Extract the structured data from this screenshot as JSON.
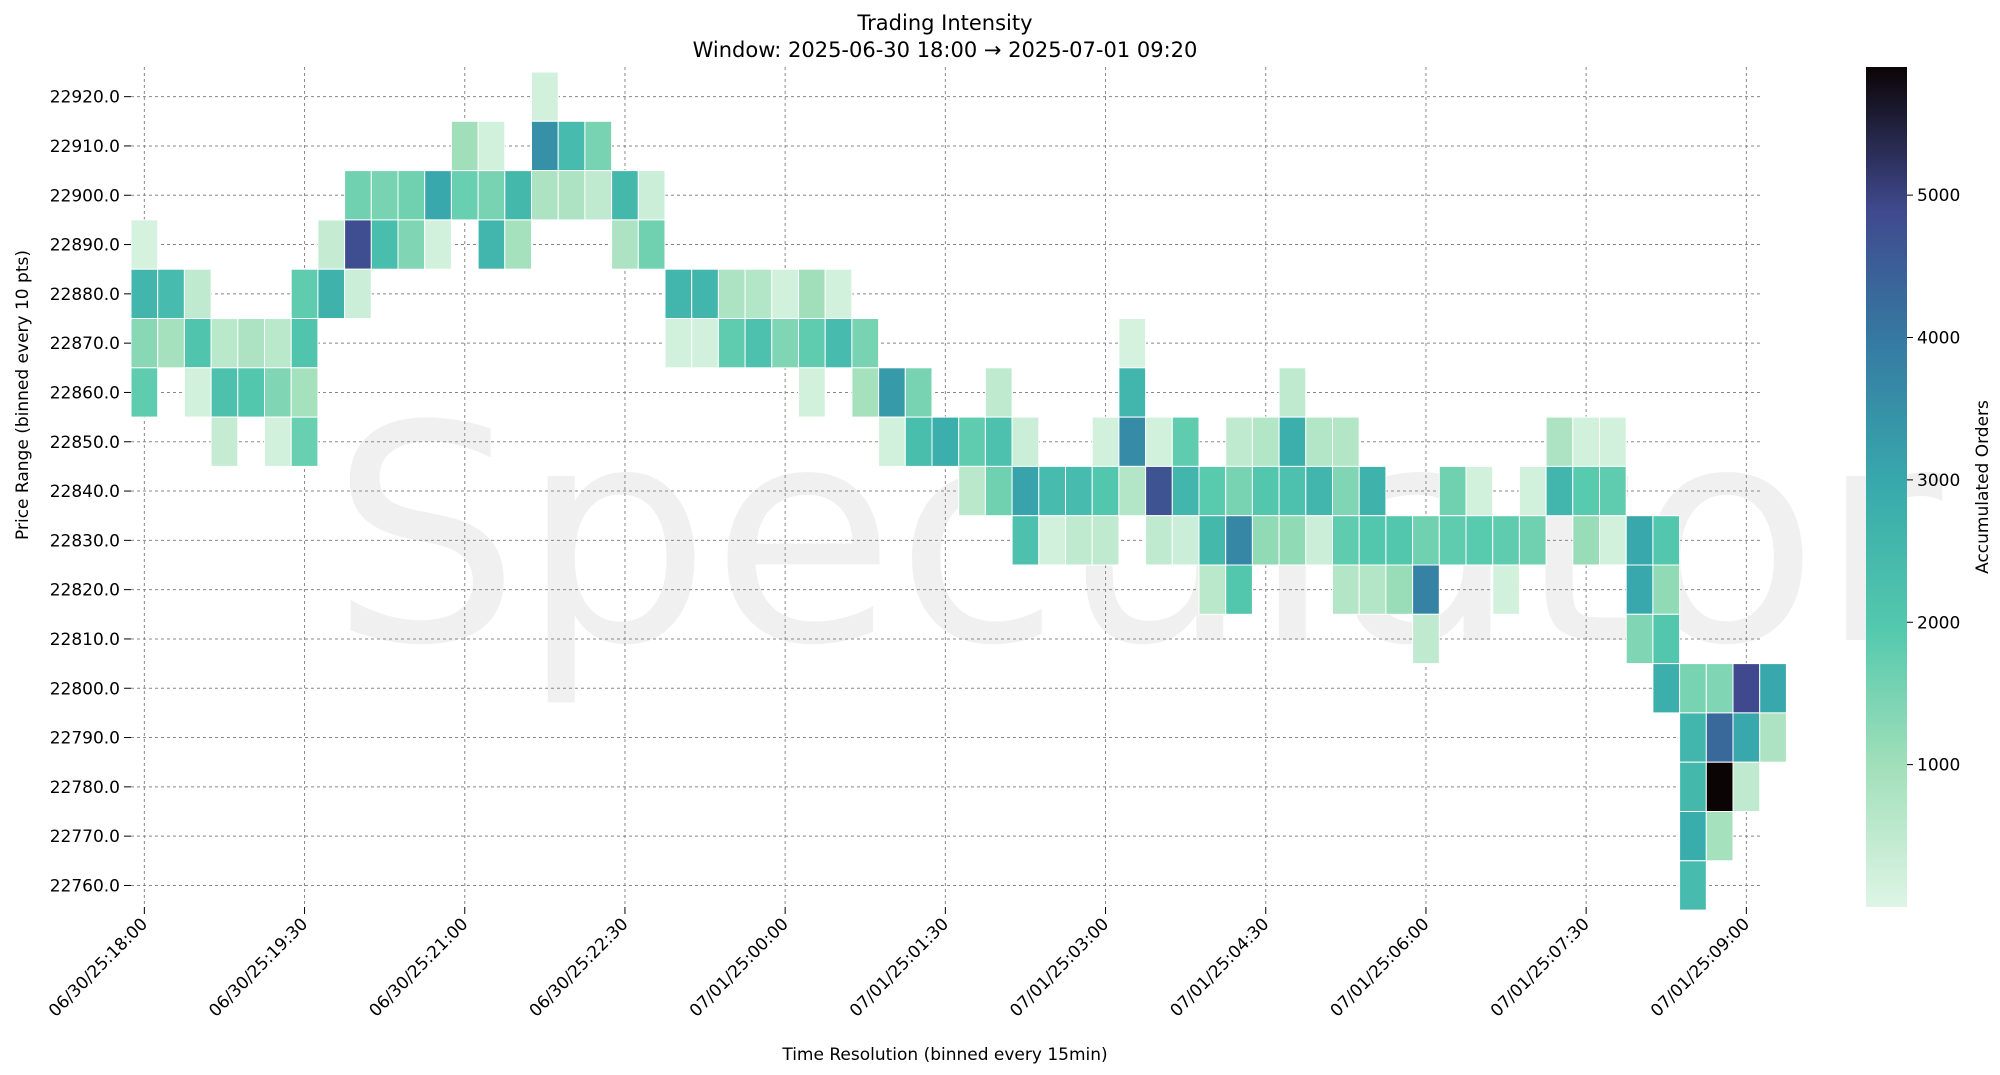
{
  "chart_data": {
    "type": "heatmap",
    "title": "Trading Intensity",
    "subtitle": "Window: 2025-06-30 18:00 → 2025-07-01 09:20",
    "xlabel": "Time Resolution (binned every 15min)",
    "ylabel": "Price Range (binned every 10 pts)",
    "watermark": "Speculator",
    "colorbar": {
      "label": "Accumulated Orders",
      "vmin": 0,
      "vmax": 5900,
      "ticks": [
        1000,
        2000,
        3000,
        4000,
        5000
      ]
    },
    "time_bin_minutes": 15,
    "x_start": "06/30/25:18:00",
    "x_tick_labels": [
      "06/30/25:18:00",
      "06/30/25:19:30",
      "06/30/25:21:00",
      "06/30/25:22:30",
      "07/01/25:00:00",
      "07/01/25:01:30",
      "07/01/25:03:00",
      "07/01/25:04:30",
      "07/01/25:06:00",
      "07/01/25:07:30",
      "07/01/25:09:00"
    ],
    "y_bins": [
      22760.0,
      22770.0,
      22780.0,
      22790.0,
      22800.0,
      22810.0,
      22820.0,
      22830.0,
      22840.0,
      22850.0,
      22860.0,
      22870.0,
      22880.0,
      22890.0,
      22900.0,
      22910.0,
      22920.0
    ],
    "y_tick_labels": [
      "22760.0",
      "22770.0",
      "22780.0",
      "22790.0",
      "22800.0",
      "22810.0",
      "22820.0",
      "22830.0",
      "22840.0",
      "22850.0",
      "22860.0",
      "22870.0",
      "22880.0",
      "22890.0",
      "22900.0",
      "22910.0",
      "22920.0"
    ],
    "cells": [
      [
        "06/30/25:18:00",
        22890,
        150
      ],
      [
        "06/30/25:18:00",
        22880,
        2600
      ],
      [
        "06/30/25:18:00",
        22870,
        1300
      ],
      [
        "06/30/25:18:00",
        22860,
        1800
      ],
      [
        "06/30/25:18:15",
        22880,
        2400
      ],
      [
        "06/30/25:18:15",
        22870,
        900
      ],
      [
        "06/30/25:18:30",
        22880,
        500
      ],
      [
        "06/30/25:18:30",
        22870,
        2100
      ],
      [
        "06/30/25:18:30",
        22860,
        200
      ],
      [
        "06/30/25:18:45",
        22870,
        600
      ],
      [
        "06/30/25:18:45",
        22860,
        2200
      ],
      [
        "06/30/25:18:45",
        22850,
        400
      ],
      [
        "06/30/25:19:00",
        22870,
        800
      ],
      [
        "06/30/25:19:00",
        22860,
        2000
      ],
      [
        "06/30/25:19:15",
        22870,
        600
      ],
      [
        "06/30/25:19:15",
        22860,
        1400
      ],
      [
        "06/30/25:19:15",
        22850,
        200
      ],
      [
        "06/30/25:19:30",
        22880,
        1800
      ],
      [
        "06/30/25:19:30",
        22870,
        2100
      ],
      [
        "06/30/25:19:30",
        22860,
        900
      ],
      [
        "06/30/25:19:30",
        22850,
        1700
      ],
      [
        "06/30/25:19:45",
        22890,
        400
      ],
      [
        "06/30/25:19:45",
        22880,
        2700
      ],
      [
        "06/30/25:20:00",
        22900,
        1600
      ],
      [
        "06/30/25:20:00",
        22890,
        4800
      ],
      [
        "06/30/25:20:00",
        22880,
        300
      ],
      [
        "06/30/25:20:15",
        22900,
        1500
      ],
      [
        "06/30/25:20:15",
        22890,
        2300
      ],
      [
        "06/30/25:20:30",
        22900,
        1600
      ],
      [
        "06/30/25:20:30",
        22890,
        1400
      ],
      [
        "06/30/25:20:45",
        22900,
        3000
      ],
      [
        "06/30/25:20:45",
        22890,
        200
      ],
      [
        "06/30/25:21:00",
        22910,
        1000
      ],
      [
        "06/30/25:21:00",
        22900,
        1700
      ],
      [
        "06/30/25:21:15",
        22910,
        200
      ],
      [
        "06/30/25:21:15",
        22900,
        1500
      ],
      [
        "06/30/25:21:15",
        22890,
        2600
      ],
      [
        "06/30/25:21:30",
        22900,
        2500
      ],
      [
        "06/30/25:21:30",
        22890,
        900
      ],
      [
        "06/30/25:21:45",
        22920,
        200
      ],
      [
        "06/30/25:21:45",
        22910,
        3500
      ],
      [
        "06/30/25:21:45",
        22900,
        800
      ],
      [
        "06/30/25:22:00",
        22910,
        2400
      ],
      [
        "06/30/25:22:00",
        22900,
        800
      ],
      [
        "06/30/25:22:15",
        22910,
        1500
      ],
      [
        "06/30/25:22:15",
        22900,
        500
      ],
      [
        "06/30/25:22:30",
        22900,
        2500
      ],
      [
        "06/30/25:22:30",
        22890,
        800
      ],
      [
        "06/30/25:22:45",
        22900,
        300
      ],
      [
        "06/30/25:22:45",
        22890,
        1600
      ],
      [
        "06/30/25:23:00",
        22880,
        2600
      ],
      [
        "06/30/25:23:00",
        22870,
        200
      ],
      [
        "06/30/25:23:15",
        22880,
        2600
      ],
      [
        "06/30/25:23:15",
        22870,
        200
      ],
      [
        "06/30/25:23:30",
        22880,
        800
      ],
      [
        "06/30/25:23:30",
        22870,
        1800
      ],
      [
        "06/30/25:23:45",
        22880,
        700
      ],
      [
        "06/30/25:23:45",
        22870,
        2200
      ],
      [
        "07/01/25:00:00",
        22880,
        200
      ],
      [
        "07/01/25:00:00",
        22870,
        1400
      ],
      [
        "07/01/25:00:15",
        22880,
        1000
      ],
      [
        "07/01/25:00:15",
        22870,
        1800
      ],
      [
        "07/01/25:00:15",
        22860,
        200
      ],
      [
        "07/01/25:00:30",
        22880,
        200
      ],
      [
        "07/01/25:00:30",
        22870,
        2400
      ],
      [
        "07/01/25:00:45",
        22870,
        1500
      ],
      [
        "07/01/25:00:45",
        22860,
        900
      ],
      [
        "07/01/25:01:00",
        22860,
        3300
      ],
      [
        "07/01/25:01:00",
        22850,
        200
      ],
      [
        "07/01/25:01:15",
        22860,
        1500
      ],
      [
        "07/01/25:01:15",
        22850,
        2300
      ],
      [
        "07/01/25:01:30",
        22850,
        2800
      ],
      [
        "07/01/25:01:45",
        22850,
        1800
      ],
      [
        "07/01/25:01:45",
        22840,
        600
      ],
      [
        "07/01/25:02:00",
        22860,
        500
      ],
      [
        "07/01/25:02:00",
        22850,
        2200
      ],
      [
        "07/01/25:02:00",
        22840,
        1600
      ],
      [
        "07/01/25:02:15",
        22850,
        300
      ],
      [
        "07/01/25:02:15",
        22840,
        3100
      ],
      [
        "07/01/25:02:15",
        22830,
        2200
      ],
      [
        "07/01/25:02:30",
        22840,
        2400
      ],
      [
        "07/01/25:02:30",
        22830,
        200
      ],
      [
        "07/01/25:02:45",
        22840,
        2400
      ],
      [
        "07/01/25:02:45",
        22830,
        500
      ],
      [
        "07/01/25:03:00",
        22850,
        200
      ],
      [
        "07/01/25:03:00",
        22840,
        2000
      ],
      [
        "07/01/25:03:00",
        22830,
        500
      ],
      [
        "07/01/25:03:15",
        22870,
        150
      ],
      [
        "07/01/25:03:15",
        22860,
        2600
      ],
      [
        "07/01/25:03:15",
        22850,
        3600
      ],
      [
        "07/01/25:03:15",
        22840,
        700
      ],
      [
        "07/01/25:03:30",
        22850,
        200
      ],
      [
        "07/01/25:03:30",
        22840,
        4700
      ],
      [
        "07/01/25:03:30",
        22830,
        500
      ],
      [
        "07/01/25:03:45",
        22850,
        1800
      ],
      [
        "07/01/25:03:45",
        22840,
        2600
      ],
      [
        "07/01/25:03:45",
        22830,
        300
      ],
      [
        "07/01/25:04:00",
        22840,
        1900
      ],
      [
        "07/01/25:04:00",
        22830,
        2500
      ],
      [
        "07/01/25:04:00",
        22820,
        600
      ],
      [
        "07/01/25:04:15",
        22850,
        500
      ],
      [
        "07/01/25:04:15",
        22840,
        1500
      ],
      [
        "07/01/25:04:15",
        22830,
        3700
      ],
      [
        "07/01/25:04:15",
        22820,
        2000
      ],
      [
        "07/01/25:04:30",
        22850,
        700
      ],
      [
        "07/01/25:04:30",
        22840,
        2000
      ],
      [
        "07/01/25:04:30",
        22830,
        1200
      ],
      [
        "07/01/25:04:45",
        22860,
        500
      ],
      [
        "07/01/25:04:45",
        22850,
        2800
      ],
      [
        "07/01/25:04:45",
        22840,
        2200
      ],
      [
        "07/01/25:04:45",
        22830,
        1200
      ],
      [
        "07/01/25:05:00",
        22850,
        700
      ],
      [
        "07/01/25:05:00",
        22840,
        2600
      ],
      [
        "07/01/25:05:00",
        22830,
        300
      ],
      [
        "07/01/25:05:15",
        22850,
        700
      ],
      [
        "07/01/25:05:15",
        22840,
        1400
      ],
      [
        "07/01/25:05:15",
        22830,
        1800
      ],
      [
        "07/01/25:05:15",
        22820,
        700
      ],
      [
        "07/01/25:05:30",
        22840,
        2700
      ],
      [
        "07/01/25:05:30",
        22830,
        2000
      ],
      [
        "07/01/25:05:30",
        22820,
        700
      ],
      [
        "07/01/25:05:45",
        22830,
        2000
      ],
      [
        "07/01/25:05:45",
        22820,
        1100
      ],
      [
        "07/01/25:06:00",
        22830,
        1600
      ],
      [
        "07/01/25:06:00",
        22820,
        3800
      ],
      [
        "07/01/25:06:00",
        22810,
        500
      ],
      [
        "07/01/25:06:15",
        22840,
        1600
      ],
      [
        "07/01/25:06:15",
        22830,
        1800
      ],
      [
        "07/01/25:06:30",
        22840,
        200
      ],
      [
        "07/01/25:06:30",
        22830,
        1900
      ],
      [
        "07/01/25:06:45",
        22830,
        1800
      ],
      [
        "07/01/25:06:45",
        22820,
        200
      ],
      [
        "07/01/25:07:00",
        22840,
        200
      ],
      [
        "07/01/25:07:00",
        22830,
        1600
      ],
      [
        "07/01/25:07:15",
        22850,
        800
      ],
      [
        "07/01/25:07:15",
        22840,
        2600
      ],
      [
        "07/01/25:07:30",
        22850,
        200
      ],
      [
        "07/01/25:07:30",
        22840,
        1900
      ],
      [
        "07/01/25:07:30",
        22830,
        1100
      ],
      [
        "07/01/25:07:45",
        22850,
        200
      ],
      [
        "07/01/25:07:45",
        22840,
        1800
      ],
      [
        "07/01/25:07:45",
        22830,
        200
      ],
      [
        "07/01/25:08:00",
        22830,
        3000
      ],
      [
        "07/01/25:08:00",
        22820,
        3000
      ],
      [
        "07/01/25:08:00",
        22810,
        1400
      ],
      [
        "07/01/25:08:15",
        22830,
        2000
      ],
      [
        "07/01/25:08:15",
        22820,
        1200
      ],
      [
        "07/01/25:08:15",
        22810,
        2000
      ],
      [
        "07/01/25:08:15",
        22800,
        2800
      ],
      [
        "07/01/25:08:30",
        22800,
        1500
      ],
      [
        "07/01/25:08:30",
        22790,
        2600
      ],
      [
        "07/01/25:08:30",
        22780,
        2500
      ],
      [
        "07/01/25:08:30",
        22770,
        2900
      ],
      [
        "07/01/25:08:30",
        22760,
        2400
      ],
      [
        "07/01/25:08:45",
        22800,
        1400
      ],
      [
        "07/01/25:08:45",
        22790,
        4300
      ],
      [
        "07/01/25:08:45",
        22780,
        5900
      ],
      [
        "07/01/25:08:45",
        22770,
        900
      ],
      [
        "07/01/25:09:00",
        22800,
        4900
      ],
      [
        "07/01/25:09:00",
        22790,
        3000
      ],
      [
        "07/01/25:09:00",
        22780,
        500
      ],
      [
        "07/01/25:09:15",
        22800,
        3000
      ],
      [
        "07/01/25:09:15",
        22790,
        800
      ]
    ]
  }
}
